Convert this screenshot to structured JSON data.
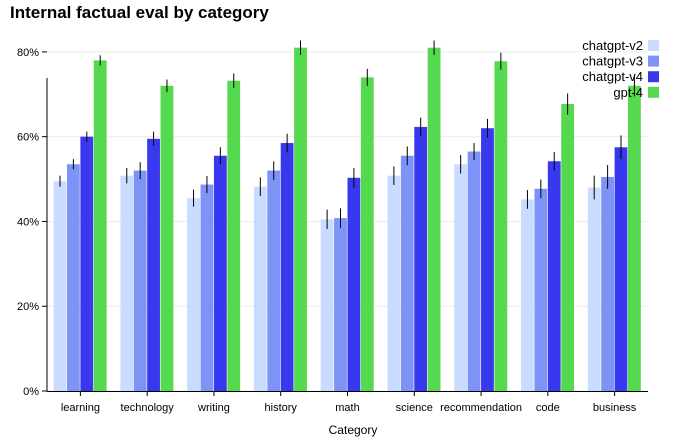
{
  "chart_data": {
    "type": "bar",
    "title": "Internal factual eval by category",
    "xlabel": "Category",
    "ylabel": "",
    "ylim": [
      0,
      0.88
    ],
    "y_ticks": [
      0,
      0.2,
      0.4,
      0.6,
      0.8
    ],
    "y_tick_labels": [
      "0%",
      "20%",
      "40%",
      "60%",
      "80%"
    ],
    "grid": true,
    "legend_position": "top-right",
    "categories": [
      "learning",
      "technology",
      "writing",
      "history",
      "math",
      "science",
      "recommendation",
      "code",
      "business"
    ],
    "series": [
      {
        "name": "chatgpt-v2",
        "color": "#c9dcff",
        "values": [
          0.495,
          0.508,
          0.455,
          0.482,
          0.405,
          0.508,
          0.535,
          0.452,
          0.48
        ],
        "errors": [
          0.013,
          0.018,
          0.02,
          0.022,
          0.023,
          0.022,
          0.022,
          0.022,
          0.028
        ]
      },
      {
        "name": "chatgpt-v3",
        "color": "#7d93f6",
        "values": [
          0.535,
          0.52,
          0.487,
          0.52,
          0.408,
          0.555,
          0.565,
          0.477,
          0.505
        ],
        "errors": [
          0.012,
          0.02,
          0.02,
          0.022,
          0.023,
          0.022,
          0.02,
          0.022,
          0.028
        ]
      },
      {
        "name": "chatgpt-v4",
        "color": "#3838ee",
        "values": [
          0.6,
          0.595,
          0.555,
          0.585,
          0.503,
          0.623,
          0.62,
          0.542,
          0.575
        ],
        "errors": [
          0.012,
          0.017,
          0.02,
          0.022,
          0.023,
          0.022,
          0.022,
          0.022,
          0.028
        ]
      },
      {
        "name": "gpt-4",
        "color": "#55d94f",
        "values": [
          0.78,
          0.72,
          0.732,
          0.81,
          0.74,
          0.81,
          0.778,
          0.677,
          0.72
        ],
        "errors": [
          0.012,
          0.015,
          0.017,
          0.017,
          0.02,
          0.017,
          0.02,
          0.025,
          0.025
        ]
      }
    ]
  }
}
